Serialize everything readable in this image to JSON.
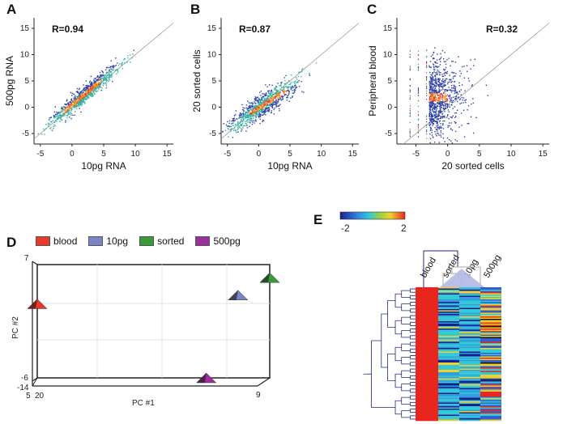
{
  "panels": {
    "A": {
      "letter": "A",
      "r": "R=0.94",
      "xlabel": "10pg RNA",
      "ylabel": "500pg RNA"
    },
    "B": {
      "letter": "B",
      "r": "R=0.87",
      "xlabel": "10pg RNA",
      "ylabel": "20 sorted cells"
    },
    "C": {
      "letter": "C",
      "r": "R=0.32",
      "xlabel": "20 sorted cells",
      "ylabel": "Peripheral blood"
    },
    "D": {
      "letter": "D"
    },
    "E": {
      "letter": "E"
    }
  },
  "chart_data": [
    {
      "type": "scatter",
      "panel": "A",
      "xlabel": "10pg RNA",
      "ylabel": "500pg RNA",
      "annotation": "R=0.94",
      "r": 0.94,
      "xlim": [
        -6,
        16
      ],
      "ylim": [
        -7,
        17
      ],
      "xticks": [
        -5,
        0,
        5,
        10,
        15
      ],
      "yticks": [
        -5,
        0,
        5,
        10,
        15
      ],
      "identity_line": true
    },
    {
      "type": "scatter",
      "panel": "B",
      "xlabel": "10pg RNA",
      "ylabel": "20 sorted cells",
      "annotation": "R=0.87",
      "r": 0.87,
      "xlim": [
        -6,
        16
      ],
      "ylim": [
        -7,
        17
      ],
      "xticks": [
        -5,
        0,
        5,
        10,
        15
      ],
      "yticks": [
        -5,
        0,
        5,
        10,
        15
      ],
      "identity_line": true
    },
    {
      "type": "scatter",
      "panel": "C",
      "xlabel": "20 sorted cells",
      "ylabel": "Peripheral blood",
      "annotation": "R=0.32",
      "r": 0.32,
      "xlim": [
        -8,
        16
      ],
      "ylim": [
        -7,
        17
      ],
      "xticks": [
        -5,
        0,
        5,
        10,
        15
      ],
      "yticks": [
        -5,
        0,
        5,
        10,
        15
      ],
      "identity_line": true
    },
    {
      "type": "scatter",
      "panel": "D",
      "xlabel": "PC #1",
      "ylabel": "PC #2",
      "legend": [
        {
          "name": "blood",
          "color": "#e8392a"
        },
        {
          "name": "10pg",
          "color": "#7a86c4"
        },
        {
          "name": "sorted",
          "color": "#3a9a3a"
        },
        {
          "name": "500pg",
          "color": "#9b2f9b"
        }
      ],
      "xticks": [
        "20",
        "9"
      ],
      "yticks": [
        "7",
        "-6",
        "-14"
      ],
      "ztick": "5",
      "xlim": [
        20,
        9
      ],
      "ylim": [
        -6,
        7
      ],
      "points": [
        {
          "name": "blood",
          "x": 20,
          "y": 2.5
        },
        {
          "name": "10pg",
          "x": 10.5,
          "y": 3.5
        },
        {
          "name": "sorted",
          "x": 9,
          "y": 5.5
        },
        {
          "name": "500pg",
          "x": 12,
          "y": -6
        }
      ]
    },
    {
      "type": "heatmap",
      "panel": "E",
      "columns": [
        "blood",
        "sorted",
        "10pg",
        "500pg"
      ],
      "colorbar": {
        "min": -2,
        "max": 2,
        "min_label": "-2",
        "max_label": "2"
      }
    }
  ],
  "legend_labels": [
    "blood",
    "10pg",
    "sorted",
    "500pg"
  ],
  "colors": {
    "blood": "#e8392a",
    "pg10": "#7a86c4",
    "sorted": "#3a9a3a",
    "pg500": "#9b2f9b",
    "scatter": "#2b3fa6"
  }
}
